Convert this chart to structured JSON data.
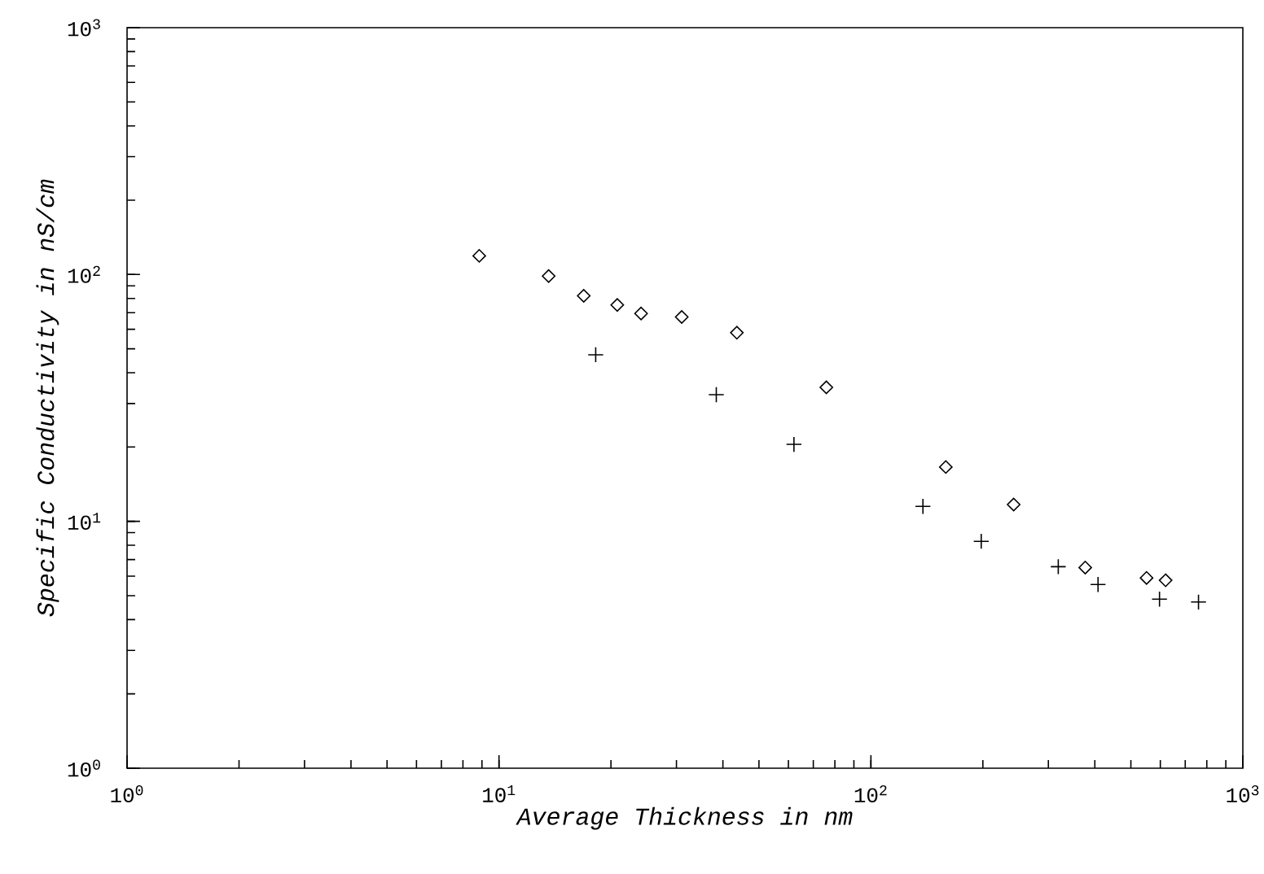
{
  "chart_data": {
    "type": "scatter",
    "xlabel": "Average Thickness in nm",
    "ylabel": "Specific Conductivity in nS/cm",
    "log": "xy",
    "xlim": [
      1,
      1000
    ],
    "ylim": [
      1,
      1000
    ],
    "xticks": [
      {
        "value": 1,
        "label": "10$^{0}$"
      },
      {
        "value": 10,
        "label": "10$^{1}$"
      },
      {
        "value": 100,
        "label": "10$^{2}$"
      },
      {
        "value": 1000,
        "label": "10$^{3}$"
      }
    ],
    "yticks": [
      {
        "value": 1,
        "label": "10$^{0}$"
      },
      {
        "value": 10,
        "label": "10$^{1}$"
      },
      {
        "value": 100,
        "label": "10$^{2}$"
      },
      {
        "value": 1000,
        "label": "10$^{3}$"
      }
    ],
    "series": [
      {
        "color": "#000000",
        "marker": "diamond",
        "x": [
          8.85,
          13.6,
          16.9,
          20.8,
          24.1,
          31,
          43.6,
          75.9,
          159,
          242,
          377,
          551,
          620
        ],
        "values": [
          119,
          98.5,
          82,
          75.3,
          69.5,
          67.3,
          58.1,
          34.9,
          16.6,
          11.7,
          6.5,
          5.9,
          5.77
        ]
      },
      {
        "color": "#000000",
        "marker": "cross",
        "x": [
          18.2,
          38.4,
          62.1,
          138,
          198,
          319,
          408,
          597,
          760
        ],
        "values": [
          47.3,
          32.6,
          20.5,
          11.5,
          8.3,
          6.55,
          5.55,
          4.84,
          4.71
        ]
      }
    ]
  }
}
